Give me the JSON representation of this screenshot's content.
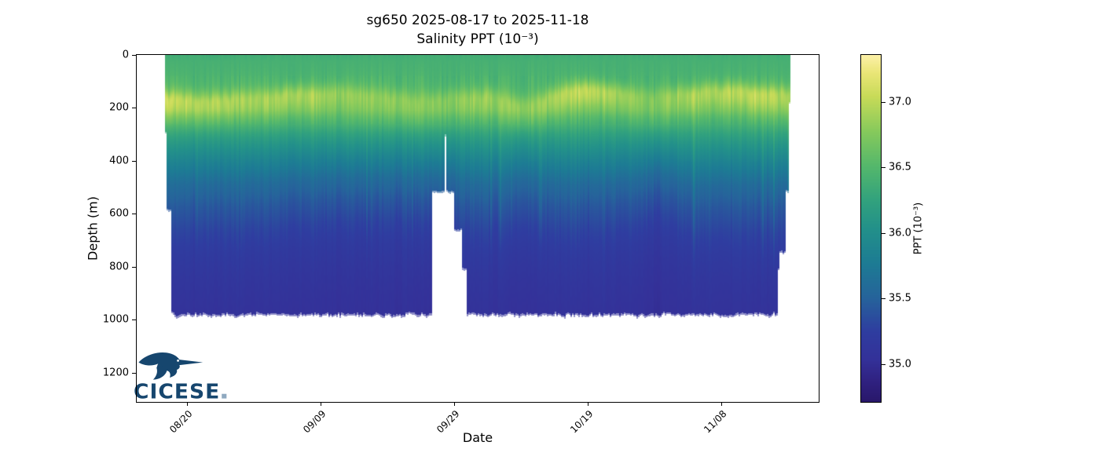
{
  "figure": {
    "title_line1": "sg650 2025-08-17 to 2025-11-18",
    "title_line2": "Salinity PPT (10⁻³)"
  },
  "axes": {
    "xlabel": "Date",
    "ylabel": "Depth (m)",
    "x_ticks": [
      {
        "label": "08/20",
        "day": 3
      },
      {
        "label": "09/09",
        "day": 23
      },
      {
        "label": "09/29",
        "day": 43
      },
      {
        "label": "10/19",
        "day": 63
      },
      {
        "label": "11/08",
        "day": 83
      }
    ],
    "y_ticks": [
      0,
      200,
      400,
      600,
      800,
      1000,
      1200
    ],
    "ylim_m": [
      0,
      1310
    ]
  },
  "colorbar": {
    "label": "PPT (10⁻³)",
    "tick_labels": [
      "35.0",
      "35.5",
      "36.0",
      "36.5",
      "37.0"
    ],
    "tick_values": [
      35.0,
      35.5,
      36.0,
      36.5,
      37.0
    ],
    "vmin": 34.71,
    "vmax": 37.36,
    "colormap_name": "haline-like (dark indigo → royal blue → teal → green → pale yellow)"
  },
  "logo": {
    "text": "CICESE",
    "color": "#16466e",
    "dot_color": "#8fa9c0"
  },
  "chart_data": {
    "type": "heatmap",
    "title": "sg650 2025-08-17 to 2025-11-18",
    "subtitle": "Salinity PPT (10⁻³)",
    "xlabel": "Date",
    "ylabel": "Depth (m)",
    "units": "PPT (10⁻³)",
    "x_dates": [
      "08/17",
      "08/27",
      "09/06",
      "09/16",
      "09/26",
      "10/06",
      "10/16",
      "10/26",
      "11/05",
      "11/15"
    ],
    "y_depths_m": [
      0,
      50,
      100,
      150,
      200,
      300,
      400,
      500,
      600,
      800,
      1000
    ],
    "values_grid_by_depth": [
      [
        36.4,
        36.4,
        36.38,
        36.4,
        36.42,
        36.4,
        36.38,
        36.4,
        36.42,
        36.4
      ],
      [
        36.44,
        36.44,
        36.43,
        36.44,
        36.45,
        36.44,
        36.44,
        36.44,
        36.45,
        36.44
      ],
      [
        36.52,
        36.5,
        36.6,
        36.58,
        36.52,
        36.56,
        36.72,
        36.62,
        36.68,
        36.7
      ],
      [
        36.95,
        36.88,
        36.9,
        36.76,
        36.78,
        36.8,
        36.98,
        36.84,
        36.9,
        36.98
      ],
      [
        36.88,
        36.8,
        36.7,
        36.66,
        36.72,
        36.78,
        36.7,
        36.68,
        36.66,
        36.72
      ],
      [
        36.2,
        36.25,
        36.1,
        36.05,
        36.1,
        36.2,
        36.15,
        36.05,
        36.25,
        36.2
      ],
      [
        35.82,
        35.85,
        35.75,
        35.7,
        35.78,
        35.85,
        35.85,
        35.7,
        35.9,
        35.85
      ],
      [
        35.55,
        35.57,
        35.5,
        35.46,
        35.52,
        35.56,
        35.56,
        35.45,
        35.6,
        35.57
      ],
      [
        35.35,
        35.36,
        35.32,
        35.3,
        35.33,
        35.35,
        35.36,
        35.28,
        35.38,
        35.36
      ],
      [
        35.12,
        35.13,
        35.11,
        35.1,
        35.11,
        35.12,
        35.12,
        35.09,
        35.14,
        35.13
      ],
      [
        35.04,
        35.04,
        35.03,
        35.03,
        35.03,
        35.04,
        35.04,
        35.02,
        35.05,
        35.04
      ]
    ],
    "value_range": [
      34.71,
      37.36
    ],
    "max_profile_depth_m": 1000,
    "notes": [
      "Subsurface salinity maximum (~36.8-37.0) centered near 130-200 m depth across the record",
      "Salinity decreases below the maximum to ~35.0 near 1000 m (dark indigo)",
      "Data gap around 09/26-09/29: profiles limited to ~520 m, one profile to ~305 m, white wedge below",
      "First profiles (08/17) reach only ~300 m and ~590 m before full 1000 m dives",
      "Final profiles (11/17-11/18) shoal in steps: ~810 m, ~750 m, ~520 m, ~185 m"
    ],
    "render_model": {
      "seed": 1234,
      "days_total": 93.65,
      "depth_axis_max_m": 1310,
      "bottom_depth_m": 985,
      "colormap_stops": [
        [
          0.0,
          41,
          24,
          107
        ],
        [
          0.06,
          48,
          34,
          130
        ],
        [
          0.12,
          52,
          49,
          153
        ],
        [
          0.2,
          47,
          61,
          160
        ],
        [
          0.3,
          38,
          100,
          155
        ],
        [
          0.4,
          29,
          124,
          148
        ],
        [
          0.5,
          35,
          145,
          138
        ],
        [
          0.58,
          50,
          162,
          126
        ],
        [
          0.68,
          85,
          184,
          108
        ],
        [
          0.78,
          135,
          202,
          92
        ],
        [
          0.88,
          200,
          219,
          88
        ],
        [
          0.95,
          235,
          230,
          120
        ],
        [
          1.0,
          253,
          241,
          168
        ]
      ],
      "base_profile": [
        [
          0,
          36.4
        ],
        [
          60,
          36.43
        ],
        [
          140,
          36.5
        ],
        [
          210,
          36.52
        ],
        [
          260,
          36.4
        ],
        [
          320,
          36.14
        ],
        [
          400,
          35.84
        ],
        [
          480,
          35.58
        ],
        [
          560,
          35.42
        ],
        [
          650,
          35.28
        ],
        [
          750,
          35.17
        ],
        [
          850,
          35.1
        ],
        [
          950,
          35.05
        ],
        [
          1100,
          35.01
        ]
      ],
      "band_keyframes": [
        [
          0,
          172,
          37.0
        ],
        [
          6,
          180,
          36.94
        ],
        [
          13,
          170,
          36.88
        ],
        [
          20,
          152,
          36.93
        ],
        [
          26,
          150,
          36.82
        ],
        [
          32,
          164,
          36.78
        ],
        [
          38,
          184,
          36.82
        ],
        [
          42,
          174,
          36.78
        ],
        [
          48,
          164,
          36.86
        ],
        [
          54,
          198,
          36.82
        ],
        [
          58,
          160,
          36.92
        ],
        [
          63,
          132,
          37.02
        ],
        [
          68,
          150,
          36.92
        ],
        [
          73,
          170,
          36.78
        ],
        [
          78,
          152,
          36.9
        ],
        [
          84,
          142,
          36.96
        ],
        [
          89,
          150,
          37.0
        ],
        [
          93.7,
          160,
          36.9
        ]
      ],
      "iso_scale_keyframes": [
        [
          0,
          1.02
        ],
        [
          10,
          1.05
        ],
        [
          20,
          0.96
        ],
        [
          30,
          0.92
        ],
        [
          40,
          0.95
        ],
        [
          48,
          1.04
        ],
        [
          55,
          0.98
        ],
        [
          63,
          1.06
        ],
        [
          70,
          1.0
        ],
        [
          74,
          0.84
        ],
        [
          79,
          1.12
        ],
        [
          84,
          1.02
        ],
        [
          90,
          1.06
        ],
        [
          93.7,
          1.02
        ]
      ],
      "extent_steps": [
        [
          0.0,
          0.3,
          300
        ],
        [
          0.3,
          0.85,
          590
        ],
        [
          39.9,
          41.9,
          520
        ],
        [
          41.9,
          42.1,
          305
        ],
        [
          42.1,
          43.4,
          520
        ],
        [
          43.4,
          44.4,
          665
        ],
        [
          44.4,
          45.1,
          812
        ],
        [
          91.8,
          92.1,
          810
        ],
        [
          92.1,
          92.9,
          750
        ],
        [
          92.9,
          93.3,
          518
        ],
        [
          93.3,
          93.66,
          185
        ]
      ]
    }
  }
}
